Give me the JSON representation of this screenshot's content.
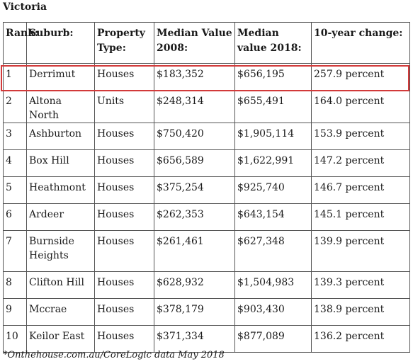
{
  "title": "Victoria",
  "headers": [
    "Rank:",
    "Suburb:",
    "Property Type:",
    "Median Value 2008:",
    "Median value 2018:",
    "10-year change:"
  ],
  "rows": [
    [
      "1",
      "Derrimut",
      "Houses",
      "$183,352",
      "$656,195",
      "257.9 percent"
    ],
    [
      "2",
      "Altona North",
      "Units",
      "$248,314",
      "$655,491",
      "164.0 percent"
    ],
    [
      "3",
      "Ashburton",
      "Houses",
      "$750,420",
      "$1,905,114",
      "153.9 percent"
    ],
    [
      "4",
      "Box Hill",
      "Houses",
      "$656,589",
      "$1,622,991",
      "147.2 percent"
    ],
    [
      "5",
      "Heathmont",
      "Houses",
      "$375,254",
      "$925,740",
      "146.7 percent"
    ],
    [
      "6",
      "Ardeer",
      "Houses",
      "$262,353",
      "$643,154",
      "145.1 percent"
    ],
    [
      "7",
      "Burnside Heights",
      "Houses",
      "$261,461",
      "$627,348",
      "139.9 percent"
    ],
    [
      "8",
      "Clifton Hill",
      "Houses",
      "$628,932",
      "$1,504,983",
      "139.3 percent"
    ],
    [
      "9",
      "Mccrae",
      "Houses",
      "$378,179",
      "$903,430",
      "138.9 percent"
    ],
    [
      "10",
      "Keilor East",
      "Houses",
      "$371,334",
      "$877,089",
      "136.2 percent"
    ]
  ],
  "highlight_color": "#d23a3a",
  "footnote": "*Onthehouse.com.au/CoreLogic data May 2018"
}
